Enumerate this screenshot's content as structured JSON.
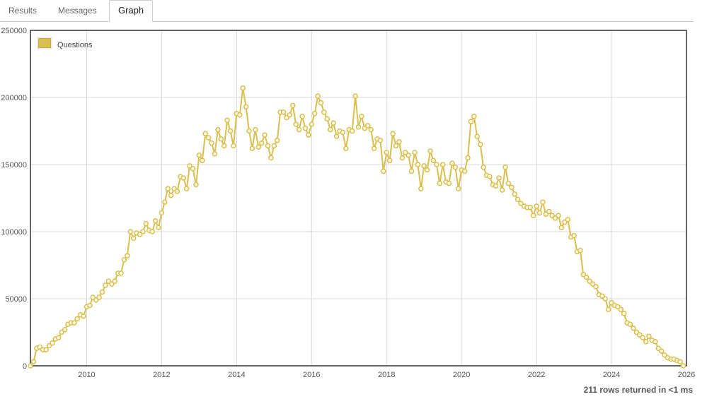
{
  "tabs": [
    {
      "label": "Results",
      "active": false
    },
    {
      "label": "Messages",
      "active": false
    },
    {
      "label": "Graph",
      "active": true
    }
  ],
  "status": "211 rows returned in <1 ms",
  "colors": {
    "series": "#d9bf4f",
    "axis": "#333333",
    "grid": "#d8d8d8"
  },
  "chart_data": {
    "type": "line",
    "title": "",
    "xlabel": "",
    "ylabel": "",
    "xlim": [
      2008.5,
      2026.0
    ],
    "ylim": [
      0,
      250000
    ],
    "x_ticks": [
      2010,
      2012,
      2014,
      2016,
      2018,
      2020,
      2022,
      2024,
      2026
    ],
    "y_ticks": [
      0,
      50000,
      100000,
      150000,
      200000,
      250000
    ],
    "grid": true,
    "legend_position": "top-left",
    "series": [
      {
        "name": "Questions",
        "color": "#d9bf4f",
        "start": "2008-07",
        "interval": "month",
        "values": [
          0,
          3000,
          13000,
          14000,
          12000,
          12000,
          15000,
          17000,
          20000,
          21000,
          25000,
          27000,
          31000,
          32000,
          32000,
          35000,
          38000,
          37000,
          44000,
          45000,
          51000,
          49000,
          51000,
          55000,
          60000,
          63000,
          61000,
          63000,
          69000,
          69000,
          79000,
          82000,
          100000,
          95000,
          99000,
          98000,
          100000,
          106000,
          101000,
          100000,
          108000,
          103000,
          114000,
          122000,
          132000,
          127000,
          132000,
          130000,
          141000,
          140000,
          132000,
          149000,
          147000,
          135000,
          157000,
          153000,
          173000,
          170000,
          166000,
          158000,
          176000,
          169000,
          164000,
          183000,
          175000,
          164000,
          188000,
          187000,
          207000,
          193000,
          175000,
          162000,
          176000,
          163000,
          166000,
          172000,
          164000,
          155000,
          164000,
          168000,
          189000,
          189000,
          185000,
          187000,
          194000,
          180000,
          176000,
          186000,
          177000,
          172000,
          180000,
          188000,
          201000,
          196000,
          189000,
          184000,
          176000,
          181000,
          171000,
          175000,
          174000,
          162000,
          176000,
          175000,
          201000,
          178000,
          186000,
          177000,
          179000,
          176000,
          162000,
          169000,
          168000,
          145000,
          159000,
          153000,
          173000,
          164000,
          167000,
          155000,
          159000,
          157000,
          145000,
          159000,
          150000,
          132000,
          149000,
          146000,
          160000,
          153000,
          150000,
          136000,
          150000,
          137000,
          136000,
          151000,
          148000,
          132000,
          146000,
          145000,
          155000,
          182000,
          186000,
          171000,
          165000,
          148000,
          142000,
          141000,
          135000,
          134000,
          140000,
          131000,
          148000,
          136000,
          133000,
          128000,
          124000,
          121000,
          119000,
          118000,
          118000,
          112000,
          119000,
          114000,
          122000,
          113000,
          115000,
          112000,
          110000,
          112000,
          103000,
          107000,
          109000,
          96000,
          97000,
          85000,
          86000,
          68000,
          66000,
          63000,
          61000,
          59000,
          53000,
          52000,
          50000,
          42000,
          47000,
          45000,
          44000,
          42000,
          39000,
          32000,
          31000,
          28000,
          25000,
          23000,
          21000,
          18000,
          22000,
          19000,
          18000,
          13000,
          11000,
          8000,
          6000,
          5000,
          5000,
          4000,
          3000,
          0
        ]
      }
    ]
  }
}
